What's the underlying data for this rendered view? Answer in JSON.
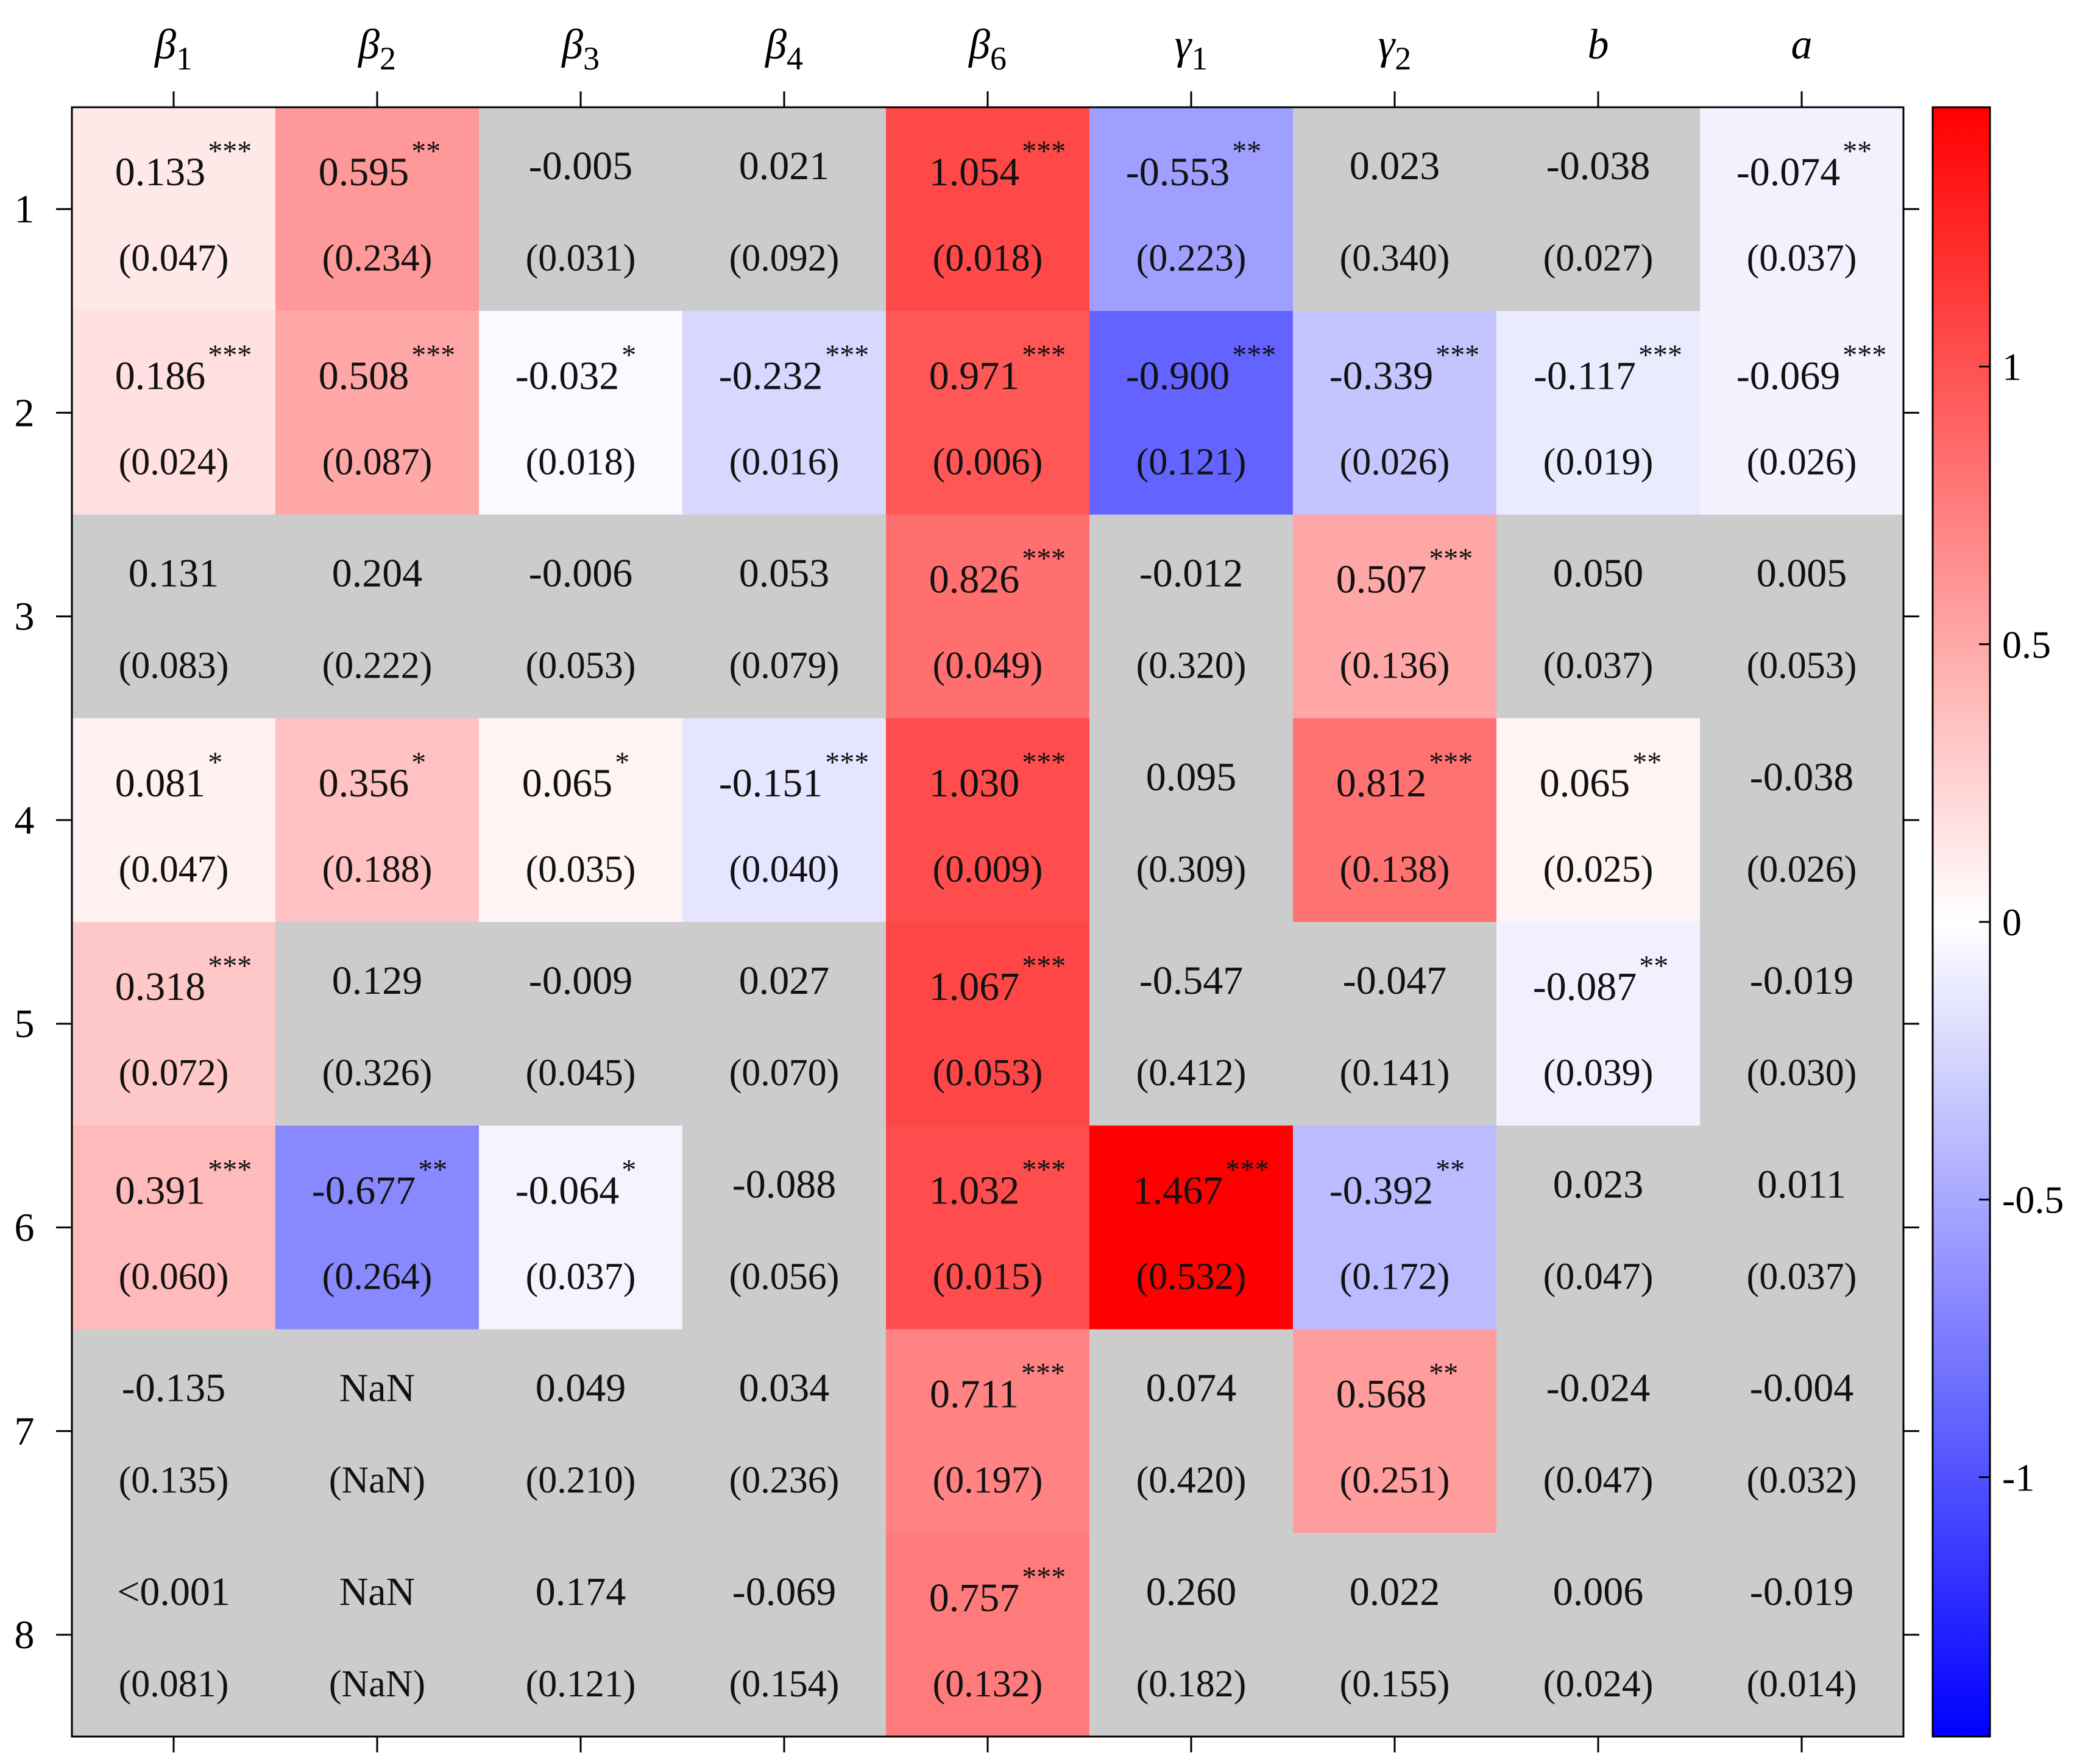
{
  "chart_data": {
    "type": "heatmap",
    "columns": [
      {
        "base": "β",
        "sub": "1"
      },
      {
        "base": "β",
        "sub": "2"
      },
      {
        "base": "β",
        "sub": "3"
      },
      {
        "base": "β",
        "sub": "4"
      },
      {
        "base": "β",
        "sub": "6"
      },
      {
        "base": "γ",
        "sub": "1"
      },
      {
        "base": "γ",
        "sub": "2"
      },
      {
        "base": "b",
        "sub": ""
      },
      {
        "base": "a",
        "sub": ""
      }
    ],
    "rows": [
      "1",
      "2",
      "3",
      "4",
      "5",
      "6",
      "7",
      "8"
    ],
    "cells": [
      [
        {
          "est": "0.133",
          "se": "(0.047)",
          "stars": "***",
          "value": 0.133,
          "sig": true
        },
        {
          "est": "0.595",
          "se": "(0.234)",
          "stars": "**",
          "value": 0.595,
          "sig": true
        },
        {
          "est": "-0.005",
          "se": "(0.031)",
          "stars": "",
          "value": -0.005,
          "sig": false
        },
        {
          "est": "0.021",
          "se": "(0.092)",
          "stars": "",
          "value": 0.021,
          "sig": false
        },
        {
          "est": "1.054",
          "se": "(0.018)",
          "stars": "***",
          "value": 1.054,
          "sig": true
        },
        {
          "est": "-0.553",
          "se": "(0.223)",
          "stars": "**",
          "value": -0.553,
          "sig": true
        },
        {
          "est": "0.023",
          "se": "(0.340)",
          "stars": "",
          "value": 0.023,
          "sig": false
        },
        {
          "est": "-0.038",
          "se": "(0.027)",
          "stars": "",
          "value": -0.038,
          "sig": false
        },
        {
          "est": "-0.074",
          "se": "(0.037)",
          "stars": "**",
          "value": -0.074,
          "sig": true
        }
      ],
      [
        {
          "est": "0.186",
          "se": "(0.024)",
          "stars": "***",
          "value": 0.186,
          "sig": true
        },
        {
          "est": "0.508",
          "se": "(0.087)",
          "stars": "***",
          "value": 0.508,
          "sig": true
        },
        {
          "est": "-0.032",
          "se": "(0.018)",
          "stars": "*",
          "value": -0.032,
          "sig": true
        },
        {
          "est": "-0.232",
          "se": "(0.016)",
          "stars": "***",
          "value": -0.232,
          "sig": true
        },
        {
          "est": "0.971",
          "se": "(0.006)",
          "stars": "***",
          "value": 0.971,
          "sig": true
        },
        {
          "est": "-0.900",
          "se": "(0.121)",
          "stars": "***",
          "value": -0.9,
          "sig": true
        },
        {
          "est": "-0.339",
          "se": "(0.026)",
          "stars": "***",
          "value": -0.339,
          "sig": true
        },
        {
          "est": "-0.117",
          "se": "(0.019)",
          "stars": "***",
          "value": -0.117,
          "sig": true
        },
        {
          "est": "-0.069",
          "se": "(0.026)",
          "stars": "***",
          "value": -0.069,
          "sig": true
        }
      ],
      [
        {
          "est": "0.131",
          "se": "(0.083)",
          "stars": "",
          "value": 0.131,
          "sig": false
        },
        {
          "est": "0.204",
          "se": "(0.222)",
          "stars": "",
          "value": 0.204,
          "sig": false
        },
        {
          "est": "-0.006",
          "se": "(0.053)",
          "stars": "",
          "value": -0.006,
          "sig": false
        },
        {
          "est": "0.053",
          "se": "(0.079)",
          "stars": "",
          "value": 0.053,
          "sig": false
        },
        {
          "est": "0.826",
          "se": "(0.049)",
          "stars": "***",
          "value": 0.826,
          "sig": true
        },
        {
          "est": "-0.012",
          "se": "(0.320)",
          "stars": "",
          "value": -0.012,
          "sig": false
        },
        {
          "est": "0.507",
          "se": "(0.136)",
          "stars": "***",
          "value": 0.507,
          "sig": true
        },
        {
          "est": "0.050",
          "se": "(0.037)",
          "stars": "",
          "value": 0.05,
          "sig": false
        },
        {
          "est": "0.005",
          "se": "(0.053)",
          "stars": "",
          "value": 0.005,
          "sig": false
        }
      ],
      [
        {
          "est": "0.081",
          "se": "(0.047)",
          "stars": "*",
          "value": 0.081,
          "sig": true
        },
        {
          "est": "0.356",
          "se": "(0.188)",
          "stars": "*",
          "value": 0.356,
          "sig": true
        },
        {
          "est": "0.065",
          "se": "(0.035)",
          "stars": "*",
          "value": 0.065,
          "sig": true
        },
        {
          "est": "-0.151",
          "se": "(0.040)",
          "stars": "***",
          "value": -0.151,
          "sig": true
        },
        {
          "est": "1.030",
          "se": "(0.009)",
          "stars": "***",
          "value": 1.03,
          "sig": true
        },
        {
          "est": "0.095",
          "se": "(0.309)",
          "stars": "",
          "value": 0.095,
          "sig": false
        },
        {
          "est": "0.812",
          "se": "(0.138)",
          "stars": "***",
          "value": 0.812,
          "sig": true
        },
        {
          "est": "0.065",
          "se": "(0.025)",
          "stars": "**",
          "value": 0.065,
          "sig": true
        },
        {
          "est": "-0.038",
          "se": "(0.026)",
          "stars": "",
          "value": -0.038,
          "sig": false
        }
      ],
      [
        {
          "est": "0.318",
          "se": "(0.072)",
          "stars": "***",
          "value": 0.318,
          "sig": true
        },
        {
          "est": "0.129",
          "se": "(0.326)",
          "stars": "",
          "value": 0.129,
          "sig": false
        },
        {
          "est": "-0.009",
          "se": "(0.045)",
          "stars": "",
          "value": -0.009,
          "sig": false
        },
        {
          "est": "0.027",
          "se": "(0.070)",
          "stars": "",
          "value": 0.027,
          "sig": false
        },
        {
          "est": "1.067",
          "se": "(0.053)",
          "stars": "***",
          "value": 1.067,
          "sig": true
        },
        {
          "est": "-0.547",
          "se": "(0.412)",
          "stars": "",
          "value": -0.547,
          "sig": false
        },
        {
          "est": "-0.047",
          "se": "(0.141)",
          "stars": "",
          "value": -0.047,
          "sig": false
        },
        {
          "est": "-0.087",
          "se": "(0.039)",
          "stars": "**",
          "value": -0.087,
          "sig": true
        },
        {
          "est": "-0.019",
          "se": "(0.030)",
          "stars": "",
          "value": -0.019,
          "sig": false
        }
      ],
      [
        {
          "est": "0.391",
          "se": "(0.060)",
          "stars": "***",
          "value": 0.391,
          "sig": true
        },
        {
          "est": "-0.677",
          "se": "(0.264)",
          "stars": "**",
          "value": -0.677,
          "sig": true
        },
        {
          "est": "-0.064",
          "se": "(0.037)",
          "stars": "*",
          "value": -0.064,
          "sig": true
        },
        {
          "est": "-0.088",
          "se": "(0.056)",
          "stars": "",
          "value": -0.088,
          "sig": false
        },
        {
          "est": "1.032",
          "se": "(0.015)",
          "stars": "***",
          "value": 1.032,
          "sig": true
        },
        {
          "est": "1.467",
          "se": "(0.532)",
          "stars": "***",
          "value": 1.467,
          "sig": true
        },
        {
          "est": "-0.392",
          "se": "(0.172)",
          "stars": "**",
          "value": -0.392,
          "sig": true
        },
        {
          "est": "0.023",
          "se": "(0.047)",
          "stars": "",
          "value": 0.023,
          "sig": false
        },
        {
          "est": "0.011",
          "se": "(0.037)",
          "stars": "",
          "value": 0.011,
          "sig": false
        }
      ],
      [
        {
          "est": "-0.135",
          "se": "(0.135)",
          "stars": "",
          "value": -0.135,
          "sig": false
        },
        {
          "est": "NaN",
          "se": "(NaN)",
          "stars": "",
          "value": null,
          "sig": false
        },
        {
          "est": "0.049",
          "se": "(0.210)",
          "stars": "",
          "value": 0.049,
          "sig": false
        },
        {
          "est": "0.034",
          "se": "(0.236)",
          "stars": "",
          "value": 0.034,
          "sig": false
        },
        {
          "est": "0.711",
          "se": "(0.197)",
          "stars": "***",
          "value": 0.711,
          "sig": true
        },
        {
          "est": "0.074",
          "se": "(0.420)",
          "stars": "",
          "value": 0.074,
          "sig": false
        },
        {
          "est": "0.568",
          "se": "(0.251)",
          "stars": "**",
          "value": 0.568,
          "sig": true
        },
        {
          "est": "-0.024",
          "se": "(0.047)",
          "stars": "",
          "value": -0.024,
          "sig": false
        },
        {
          "est": "-0.004",
          "se": "(0.032)",
          "stars": "",
          "value": -0.004,
          "sig": false
        }
      ],
      [
        {
          "est": "<0.001",
          "se": "(0.081)",
          "stars": "",
          "value": 0.0,
          "sig": false
        },
        {
          "est": "NaN",
          "se": "(NaN)",
          "stars": "",
          "value": null,
          "sig": false
        },
        {
          "est": "0.174",
          "se": "(0.121)",
          "stars": "",
          "value": 0.174,
          "sig": false
        },
        {
          "est": "-0.069",
          "se": "(0.154)",
          "stars": "",
          "value": -0.069,
          "sig": false
        },
        {
          "est": "0.757",
          "se": "(0.132)",
          "stars": "***",
          "value": 0.757,
          "sig": true
        },
        {
          "est": "0.260",
          "se": "(0.182)",
          "stars": "",
          "value": 0.26,
          "sig": false
        },
        {
          "est": "0.022",
          "se": "(0.155)",
          "stars": "",
          "value": 0.022,
          "sig": false
        },
        {
          "est": "0.006",
          "se": "(0.024)",
          "stars": "",
          "value": 0.006,
          "sig": false
        },
        {
          "est": "-0.019",
          "se": "(0.014)",
          "stars": "",
          "value": -0.019,
          "sig": false
        }
      ]
    ],
    "colorbar": {
      "ticks": [
        "1",
        "0.5",
        "0",
        "-0.5",
        "-1"
      ],
      "tick_values": [
        1,
        0.5,
        0,
        -0.5,
        -1
      ],
      "range": [
        -1.467,
        1.467
      ],
      "colors": {
        "low": "#0000ff",
        "mid": "#ffffff",
        "high": "#ff0000"
      }
    },
    "colors": {
      "not_significant": "#cccccc",
      "text": "#111111",
      "axis": "#000000"
    },
    "title": "",
    "xlabel": "",
    "ylabel": ""
  }
}
